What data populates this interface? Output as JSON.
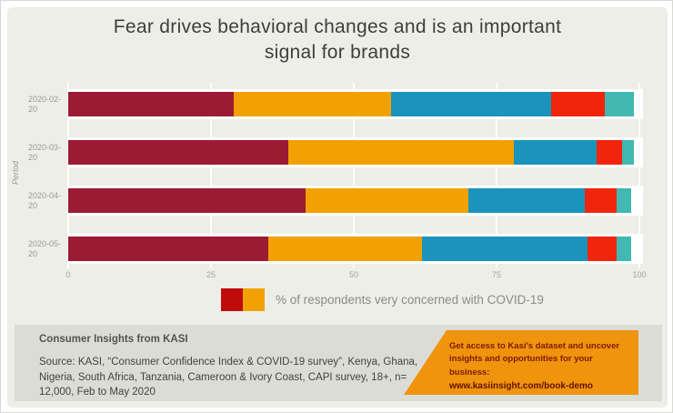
{
  "title": "Fear drives behavioral changes and is an important signal for brands",
  "chart_data": {
    "type": "bar",
    "stacked": true,
    "orientation": "horizontal",
    "title": "Fear drives behavioral changes and is an important signal for brands",
    "categories": [
      "2020-02-20",
      "2020-03-20",
      "2020-04-20",
      "2020-05-20"
    ],
    "series": [
      {
        "name": "dark-red",
        "color": "#9B1B33",
        "values": [
          29,
          38.5,
          41.5,
          35
        ]
      },
      {
        "name": "orange",
        "color": "#F2A104",
        "values": [
          27.5,
          39.5,
          28.5,
          27
        ]
      },
      {
        "name": "blue",
        "color": "#1B94BD",
        "values": [
          28,
          14.5,
          20.5,
          29
        ]
      },
      {
        "name": "bright-red",
        "color": "#F1250C",
        "values": [
          9.5,
          4.5,
          5.5,
          5
        ]
      },
      {
        "name": "teal",
        "color": "#41B8B1",
        "values": [
          5,
          2,
          2.5,
          2.5
        ]
      }
    ],
    "xticks": [
      0,
      25,
      50,
      75,
      100
    ],
    "xlim": [
      0,
      100
    ],
    "xlabel": "",
    "ylabel": "Period",
    "grid": true,
    "legend_position": "bottom"
  },
  "legend": {
    "swatch_colors": [
      "#C00B0B",
      "#F2A104"
    ],
    "label": "% of respondents very concerned with COVID-19"
  },
  "footer": {
    "heading": "Consumer Insights from KASI",
    "source": "Source: KASI, “Consumer Confidence Index & COVID-19 survey”, Kenya, Ghana, Nigeria, South Africa, Tanzania, Cameroon & Ivory Coast, CAPI survey, 18+, n= 12,000, Feb to May 2020",
    "cta_text": "Get access to Kasi's dataset and uncover insights and opportunities for your business:",
    "cta_link": "www.kasiinsight.com/book-demo"
  },
  "colors": {
    "card_bg": "#EDEEE8",
    "footer_bg": "#DBDCD6",
    "title": "#3E3E3E",
    "axis_text": "#9B9B93",
    "tick_text": "#A6A6A0",
    "legend_text": "#8C8C86",
    "footer_heading": "#54544E",
    "footer_text": "#43433E",
    "cta_bg": "#F0930D",
    "cta_text": "#7B1A03",
    "cta_link": "#5E1300",
    "band": "#FFFFFF",
    "grid": "rgba(255,255,255,0.85)"
  }
}
